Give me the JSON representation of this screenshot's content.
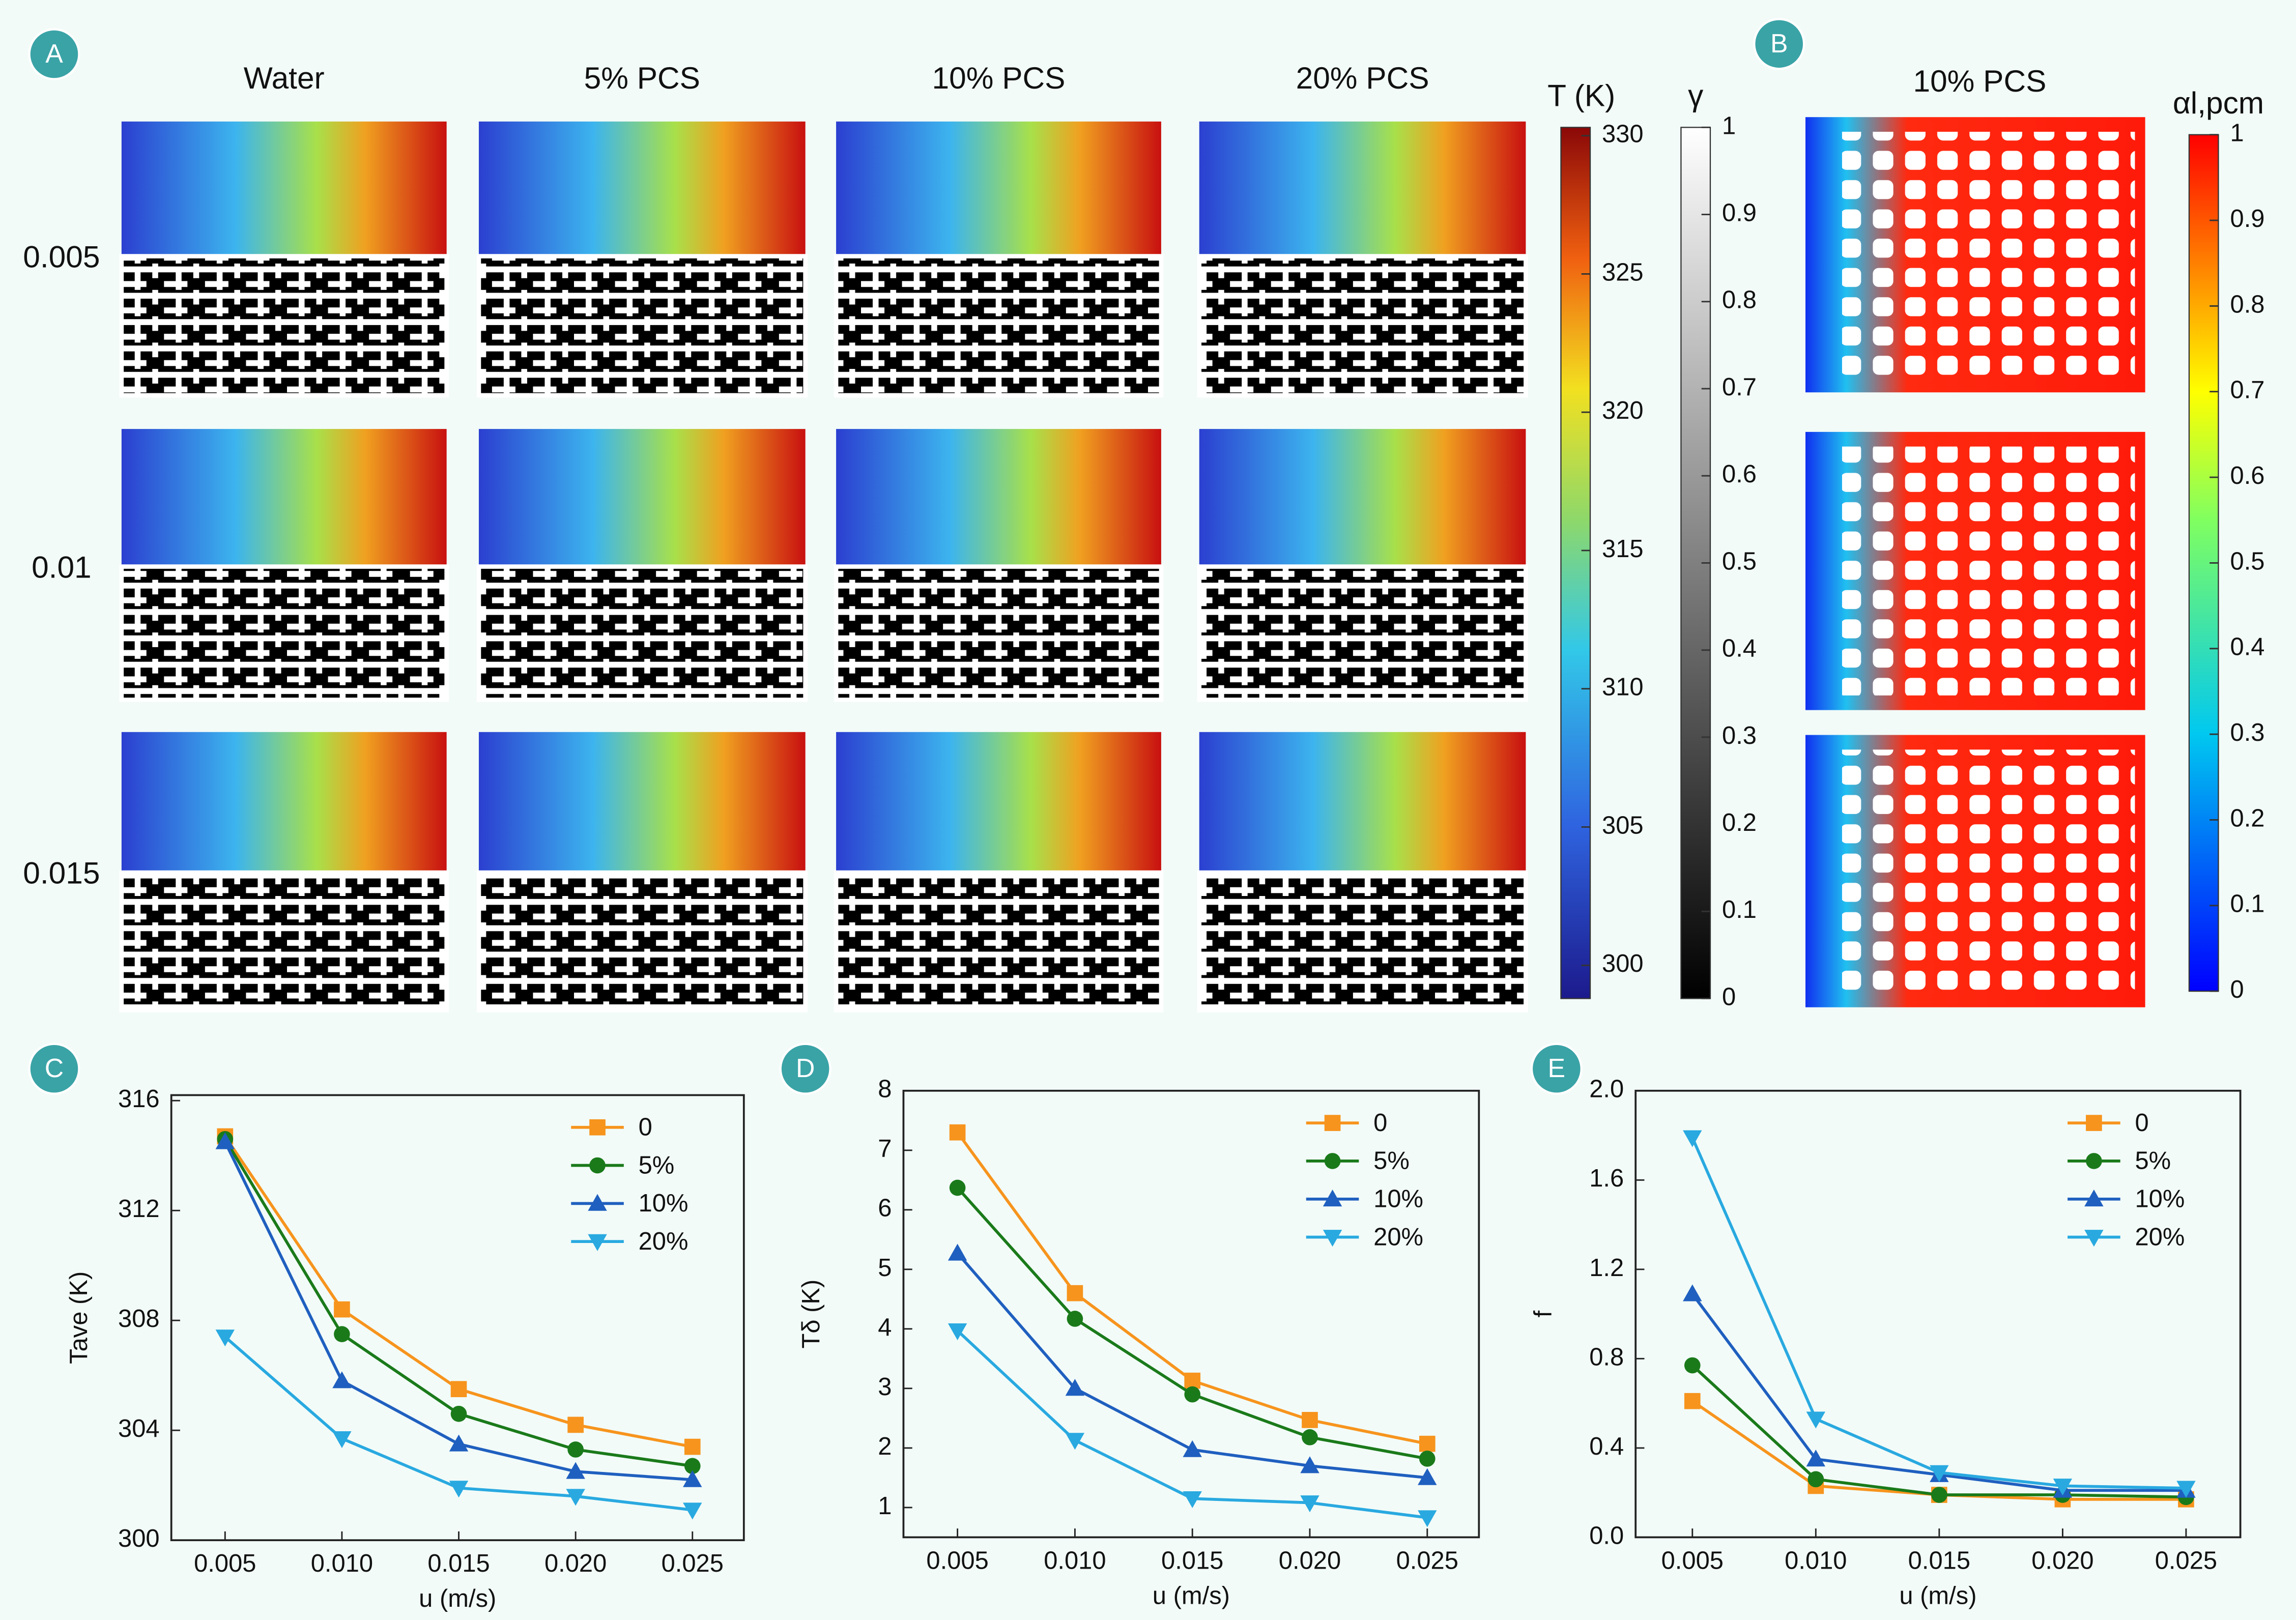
{
  "panel_labels": [
    "A",
    "B",
    "C",
    "D",
    "E"
  ],
  "panel_a": {
    "columns": [
      "Water",
      "5% PCS",
      "10% PCS",
      "20% PCS"
    ],
    "rows": [
      "0.005",
      "0.01",
      "0.015"
    ],
    "colorbar_t": {
      "label": "T (K)",
      "lim": [
        298.8,
        330.3
      ],
      "ticks": [
        300,
        305,
        310,
        315,
        320,
        325,
        330
      ]
    },
    "colorbar_gamma": {
      "label": "γ",
      "lim": [
        0,
        1
      ],
      "ticks": [
        0,
        0.1,
        0.2,
        0.3,
        0.4,
        0.5,
        0.6,
        0.7,
        0.8,
        0.9,
        1
      ]
    }
  },
  "panel_b": {
    "title": "10% PCS",
    "colorbar": {
      "label": "αl,pcm",
      "lim": [
        0,
        1
      ],
      "ticks": [
        0,
        0.1,
        0.2,
        0.3,
        0.4,
        0.5,
        0.6,
        0.7,
        0.8,
        0.9,
        1
      ]
    }
  },
  "chart_data": [
    {
      "type": "line",
      "xlabel": "u (m/s)",
      "ylabel": "Tave (K)",
      "x": [
        0.005,
        0.01,
        0.015,
        0.02,
        0.025
      ],
      "xlim": [
        0.0027,
        0.0272
      ],
      "xticks": [
        0.005,
        {
          "value": 0.01,
          "label": "0.010"
        },
        0.015,
        {
          "value": 0.02,
          "label": "0.020"
        },
        0.025
      ],
      "ylim": [
        300,
        316.2
      ],
      "yticks": [
        300,
        304,
        308,
        312,
        316
      ],
      "legend": "upper right",
      "series": [
        {
          "name": "0",
          "color": "#f7941d",
          "marker": "square",
          "values": [
            314.7,
            308.4,
            305.5,
            304.2,
            303.4
          ]
        },
        {
          "name": "5%",
          "color": "#1a7a1a",
          "marker": "circle",
          "values": [
            314.6,
            307.5,
            304.6,
            303.3,
            302.7
          ]
        },
        {
          "name": "10%",
          "color": "#1f5fbf",
          "marker": "triangle-up",
          "values": [
            314.5,
            305.8,
            303.5,
            302.5,
            302.2
          ]
        },
        {
          "name": "20%",
          "color": "#29a9e0",
          "marker": "triangle-down",
          "values": [
            307.4,
            303.7,
            301.9,
            301.6,
            301.1
          ]
        }
      ]
    },
    {
      "type": "line",
      "xlabel": "u (m/s)",
      "ylabel": "Tδ (K)",
      "x": [
        0.005,
        0.01,
        0.015,
        0.02,
        0.025
      ],
      "xlim": [
        0.0027,
        0.0272
      ],
      "xticks": [
        0.005,
        {
          "value": 0.01,
          "label": "0.010"
        },
        0.015,
        {
          "value": 0.02,
          "label": "0.020"
        },
        0.025
      ],
      "ylim": [
        0.5,
        8
      ],
      "yticks": [
        1,
        2,
        3,
        4,
        5,
        6,
        7,
        8
      ],
      "legend": "upper right",
      "series": [
        {
          "name": "0",
          "color": "#f7941d",
          "marker": "square",
          "values": [
            7.3,
            4.6,
            3.13,
            2.47,
            2.07
          ]
        },
        {
          "name": "5%",
          "color": "#1a7a1a",
          "marker": "circle",
          "values": [
            6.37,
            4.17,
            2.9,
            2.18,
            1.82
          ]
        },
        {
          "name": "10%",
          "color": "#1f5fbf",
          "marker": "triangle-up",
          "values": [
            5.27,
            3.0,
            1.97,
            1.7,
            1.5
          ]
        },
        {
          "name": "20%",
          "color": "#29a9e0",
          "marker": "triangle-down",
          "values": [
            3.97,
            2.13,
            1.15,
            1.08,
            0.83
          ]
        }
      ]
    },
    {
      "type": "line",
      "xlabel": "u (m/s)",
      "ylabel": "f",
      "x": [
        0.005,
        0.01,
        0.015,
        0.02,
        0.025
      ],
      "xlim": [
        0.0027,
        0.0272
      ],
      "xticks": [
        0.005,
        {
          "value": 0.01,
          "label": "0.010"
        },
        0.015,
        {
          "value": 0.02,
          "label": "0.020"
        },
        0.025
      ],
      "ylim": [
        0,
        2.0
      ],
      "yticks": [
        {
          "value": 0,
          "label": "0.0"
        },
        0.4,
        0.8,
        1.2,
        1.6,
        {
          "value": 2,
          "label": "2.0"
        }
      ],
      "legend": "upper right",
      "series": [
        {
          "name": "0",
          "color": "#f7941d",
          "marker": "square",
          "values": [
            0.61,
            0.23,
            0.19,
            0.17,
            0.17
          ]
        },
        {
          "name": "5%",
          "color": "#1a7a1a",
          "marker": "circle",
          "values": [
            0.77,
            0.26,
            0.19,
            0.19,
            0.18
          ]
        },
        {
          "name": "10%",
          "color": "#1f5fbf",
          "marker": "triangle-up",
          "values": [
            1.09,
            0.35,
            0.28,
            0.21,
            0.21
          ]
        },
        {
          "name": "20%",
          "color": "#29a9e0",
          "marker": "triangle-down",
          "values": [
            1.79,
            0.53,
            0.29,
            0.23,
            0.22
          ]
        }
      ]
    }
  ]
}
